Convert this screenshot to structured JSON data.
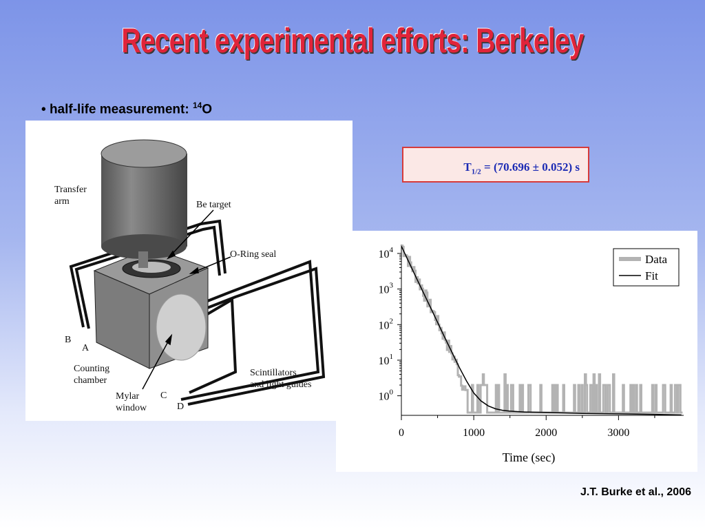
{
  "slide": {
    "title": "Recent experimental efforts: Berkeley",
    "bullet_prefix": "• ",
    "bullet_text": "half-life measurement: ",
    "isotope_mass": "14",
    "isotope_symbol": "O",
    "citation": "J.T. Burke et al., 2006"
  },
  "result": {
    "symbol": "T",
    "subscript": "1/2",
    "value": " = (70.696 ± 0.052) s"
  },
  "diagram": {
    "labels": {
      "transfer_arm": "Transfer\narm",
      "be_target": "Be target",
      "oring": "O-Ring seal",
      "b": "B",
      "a": "A",
      "counting": "Counting\nchamber",
      "scint": "Scintillators\nand light guides",
      "mylar": "Mylar\nwindow",
      "c": "C",
      "d": "D"
    }
  },
  "chart_data": {
    "type": "line",
    "xlabel": "Time (sec)",
    "x_ticks": [
      "0",
      "1000",
      "2000",
      "3000"
    ],
    "y_ticks": [
      "10",
      "10",
      "10",
      "10",
      "10"
    ],
    "y_tick_exponents": [
      "4",
      "3",
      "2",
      "1",
      "0"
    ],
    "xlim": [
      0,
      3900
    ],
    "ylim_log10": [
      -0.55,
      4.25
    ],
    "y_scale": "log",
    "legend": [
      "Data",
      "Fit"
    ],
    "legend_position": "top-right",
    "series": [
      {
        "name": "Data",
        "color": "#b3b3b3",
        "x": [
          0,
          300,
          600,
          750,
          850,
          900,
          1000,
          1200,
          1500,
          2000,
          2500,
          3000,
          3500,
          3870
        ],
        "y": [
          16000,
          850,
          40,
          8,
          2,
          1,
          0.6,
          0.4,
          0.35,
          0.33,
          0.32,
          0.31,
          0.3,
          0.3
        ],
        "y_noise_band": [
          0.3,
          2
        ]
      },
      {
        "name": "Fit",
        "color": "#000000",
        "x": [
          0,
          200,
          400,
          600,
          800,
          900,
          1000,
          1100,
          1200,
          1300,
          1400,
          1500,
          1700,
          2000,
          2500,
          3000,
          3500,
          3870
        ],
        "y": [
          16000,
          2200,
          310,
          43,
          6.3,
          2.6,
          1.2,
          0.72,
          0.52,
          0.43,
          0.39,
          0.37,
          0.35,
          0.34,
          0.32,
          0.31,
          0.3,
          0.29
        ]
      }
    ]
  },
  "colors": {
    "title_red": "#e0243a",
    "result_blue": "#1c2bb4",
    "result_border": "#d63a3a",
    "result_fill": "#fbe8e6"
  }
}
